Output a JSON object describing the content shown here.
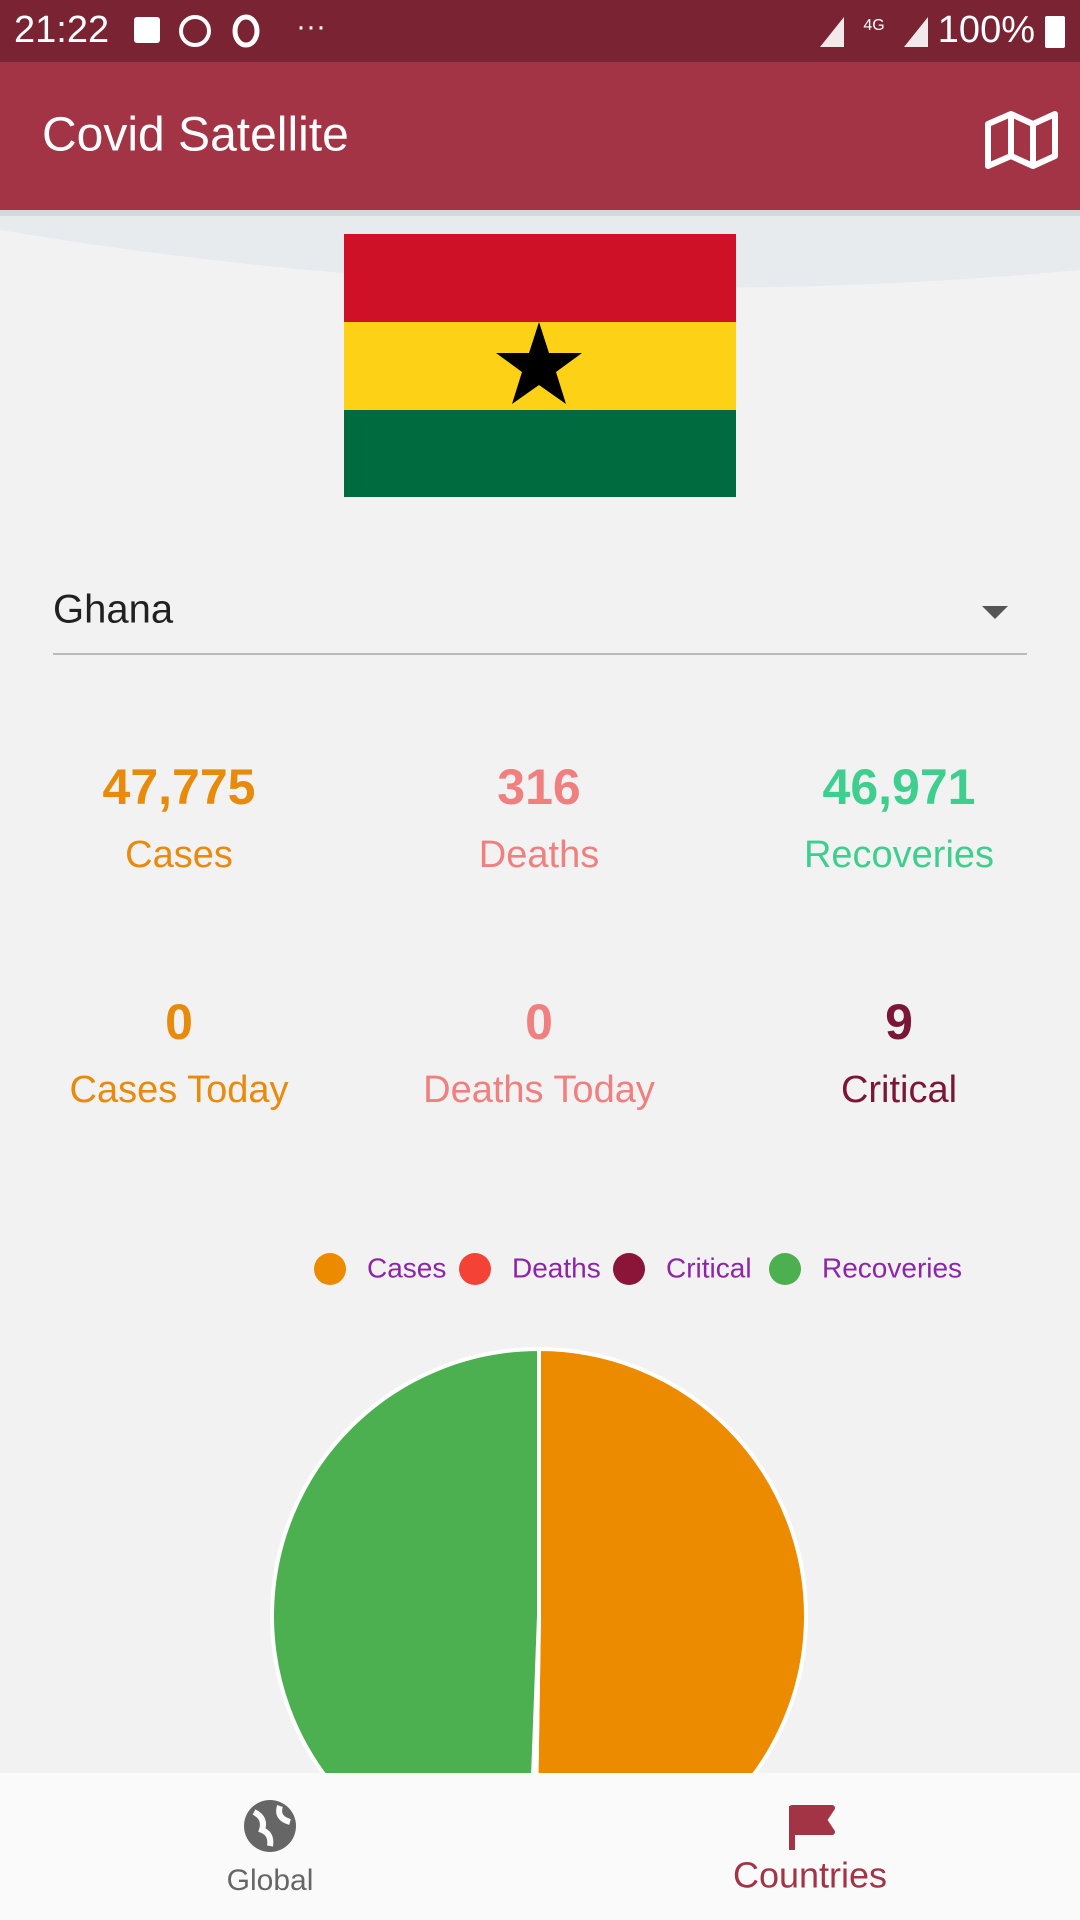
{
  "status_bar": {
    "time": "21:22",
    "network": "4G",
    "battery": "100%"
  },
  "app_bar": {
    "title": "Covid Satellite"
  },
  "country_select": {
    "value": "Ghana"
  },
  "stats": {
    "labels": [
      "Cases",
      "Deaths",
      "Recoveries",
      "Cases Today",
      "Deaths Today",
      "Critical"
    ],
    "today_values": [
      "0",
      "0"
    ]
  },
  "chart_data": {
    "type": "pie",
    "categories": [
      "Cases",
      "Deaths",
      "Critical",
      "Recoveries"
    ],
    "values": [
      47775,
      316,
      9,
      46971
    ],
    "value_labels": [
      "47,775",
      "316",
      "9",
      "46,971"
    ],
    "colors": [
      "#ec8a00",
      "#f44336",
      "#8b1538",
      "#4caf50"
    ]
  },
  "bottom_nav": {
    "items": [
      "Global",
      "Countries"
    ]
  }
}
